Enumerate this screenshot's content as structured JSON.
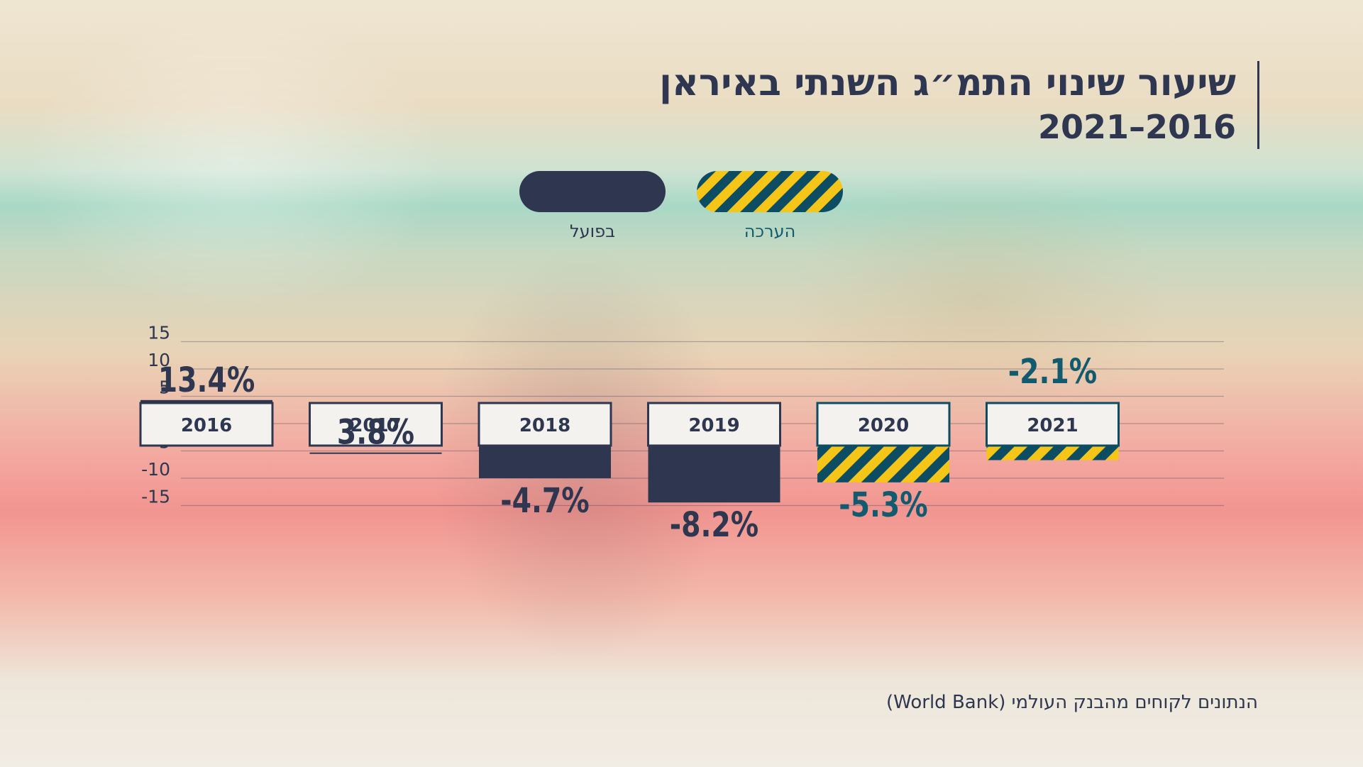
{
  "title": "שיעור שינוי התמ״ג השנתי באיראן",
  "subtitle": "2021–2016",
  "source": "הנתונים לקוחים מהבנק העולמי (World Bank)",
  "colors": {
    "actual": "#2e3650",
    "estimate_stripe_a": "#f5c518",
    "estimate_stripe_b": "#0d4d63",
    "estimate_label": "#125a6e",
    "text": "#2e3650",
    "label_box": "#f3f2ef"
  },
  "chart_data": {
    "type": "bar",
    "categories": [
      "2016",
      "2017",
      "2018",
      "2019",
      "2020",
      "2021"
    ],
    "values": [
      13.4,
      3.8,
      -4.7,
      -8.2,
      -5.3,
      -2.1
    ],
    "value_labels": [
      "13.4%",
      "3.8%",
      "-4.7%",
      "-8.2%",
      "-5.3%",
      "-2.1%"
    ],
    "kind": [
      "actual",
      "actual",
      "actual",
      "actual",
      "estimate",
      "estimate"
    ],
    "legend": [
      {
        "label": "בפועל",
        "key": "actual"
      },
      {
        "label": "הערכה",
        "key": "estimate"
      }
    ],
    "ylim": [
      -15,
      15
    ],
    "yticks": [
      15,
      10,
      5,
      0,
      -5,
      -10,
      -15
    ],
    "ytick_labels": [
      "15",
      "10",
      "5",
      "0",
      "-5",
      "-10",
      "-15"
    ],
    "grid": true
  }
}
